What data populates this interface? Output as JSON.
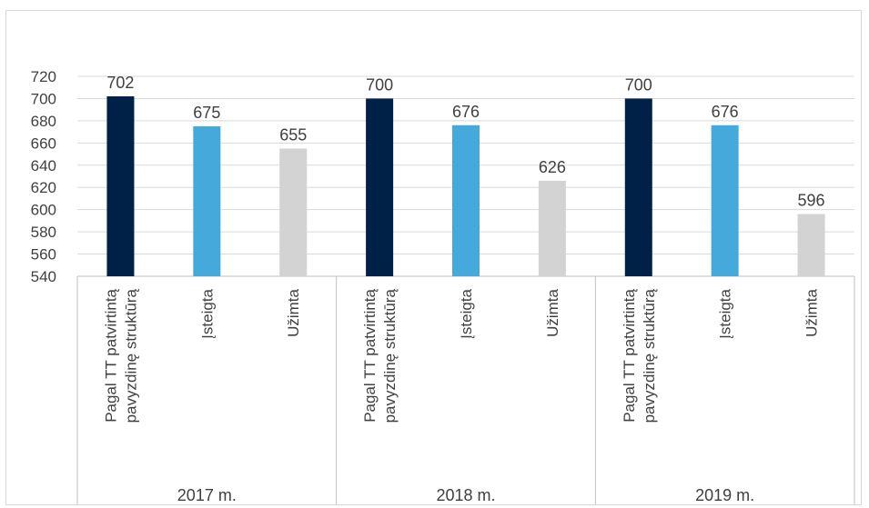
{
  "chart_data": {
    "type": "bar",
    "title": "",
    "xlabel": "",
    "ylabel": "",
    "ylim": [
      540,
      720
    ],
    "yticks": [
      540,
      560,
      580,
      600,
      620,
      640,
      660,
      680,
      700,
      720
    ],
    "grid": true,
    "legend": "none",
    "groups": [
      {
        "label": "2017 m.",
        "bars": [
          {
            "category": "Pagal TT patvirtintą pavyzdinę struktūrą",
            "value": 702,
            "color": "#002147"
          },
          {
            "category": "Įsteigta",
            "value": 675,
            "color": "#45A9DB"
          },
          {
            "category": "Užimta",
            "value": 655,
            "color": "#D3D3D3"
          }
        ]
      },
      {
        "label": "2018 m.",
        "bars": [
          {
            "category": "Pagal TT patvirtintą pavyzdinę struktūrą",
            "value": 700,
            "color": "#002147"
          },
          {
            "category": "Įsteigta",
            "value": 676,
            "color": "#45A9DB"
          },
          {
            "category": "Užimta",
            "value": 626,
            "color": "#D3D3D3"
          }
        ]
      },
      {
        "label": "2019 m.",
        "bars": [
          {
            "category": "Pagal TT patvirtintą pavyzdinę struktūrą",
            "value": 700,
            "color": "#002147"
          },
          {
            "category": "Įsteigta",
            "value": 676,
            "color": "#45A9DB"
          },
          {
            "category": "Užimta",
            "value": 596,
            "color": "#D3D3D3"
          }
        ]
      }
    ]
  }
}
